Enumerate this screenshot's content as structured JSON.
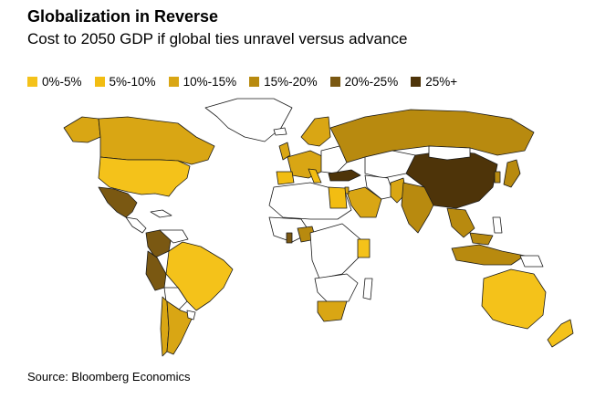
{
  "header": {
    "title": "Globalization in Reverse",
    "subtitle": "Cost to 2050 GDP if global ties unravel versus advance"
  },
  "legend": [
    {
      "label": "0%-5%",
      "color": "#f4c21a"
    },
    {
      "label": "5%-10%",
      "color": "#f2bd12"
    },
    {
      "label": "10%-15%",
      "color": "#d9a614"
    },
    {
      "label": "15%-20%",
      "color": "#b88a0f"
    },
    {
      "label": "20%-25%",
      "color": "#7a5812"
    },
    {
      "label": "25%+",
      "color": "#4e3409"
    }
  ],
  "map_colors": {
    "none": "#ffffff",
    "stroke": "#1a1a1a"
  },
  "regions": {
    "usa": "5%-10%",
    "canada": "10%-15%",
    "mexico": "20%-25%",
    "brazil": "5%-10%",
    "argentina": "10%-15%",
    "peru": "20%-25%",
    "colombia": "20%-25%",
    "russia": "15%-20%",
    "china": "25%+",
    "india": "15%-20%",
    "australia": "5%-10%",
    "south_africa": "10%-15%",
    "europe": "10%-15%",
    "turkey": "25%+",
    "japan": "15%-20%"
  },
  "footer": {
    "source": "Source: Bloomberg Economics"
  }
}
